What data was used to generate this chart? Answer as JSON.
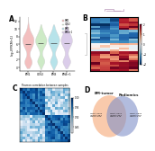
{
  "panel_A": {
    "ylabel": "log2(FPKM+1)",
    "groups": [
      "BM1",
      "CDS2",
      "BM3",
      "BM4+1"
    ],
    "colors": [
      "#f2b8b8",
      "#c8e8c0",
      "#b0e0e8",
      "#d8c8e8"
    ],
    "legend_labels": [
      "BM1",
      "CDS2",
      "BM3",
      "BM4+1"
    ]
  },
  "panel_B": {
    "n_rows": 25,
    "n_cols": 5,
    "vmin": -2,
    "vmax": 2
  },
  "panel_C": {
    "subtitle": "Pearson correlation between samples",
    "n": 20,
    "vmin": 0.82,
    "vmax": 1.0
  },
  "panel_D": {
    "circle1_label": "BM-tumor",
    "circle2_label": "Radiomics",
    "circle1_color": "#f5a875",
    "circle2_color": "#8090c8",
    "text_left": "mRNA:3422\nlncRNA:984\nmiRNA:159",
    "text_center": "mRNA:2011\nlncRNA:394\nmiRNA:175",
    "text_right": "mRNA:1892\nlncRNA:379\nmiRNA:174"
  },
  "bg_color": "#ffffff"
}
